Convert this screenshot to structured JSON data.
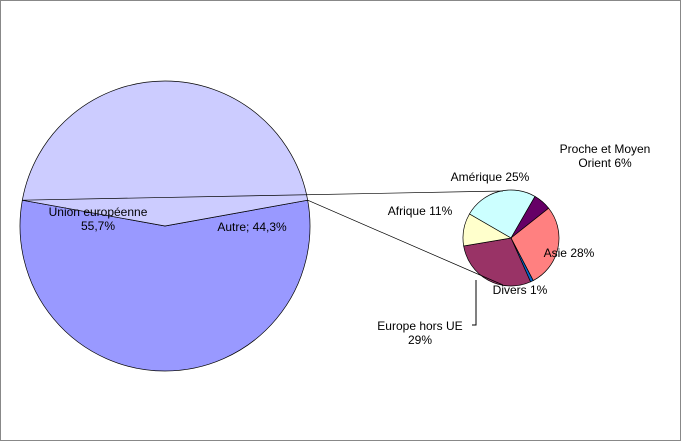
{
  "chart_data": [
    {
      "type": "pie",
      "values": [
        55.7,
        44.3
      ],
      "colors": [
        "#9999ff",
        "#ccccff"
      ],
      "labels": [
        [
          "Union européenne",
          "55,7%"
        ],
        [
          "Autre; 44,3%"
        ]
      ]
    },
    {
      "type": "pie",
      "values": [
        25,
        6,
        28,
        1,
        29,
        11
      ],
      "colors": [
        "#ccffff",
        "#660066",
        "#ff8080",
        "#0066cc",
        "#993366",
        "#ffffcc"
      ],
      "labels": [
        [
          "Amérique 25%"
        ],
        [
          "Proche et Moyen",
          "Orient 6%"
        ],
        [
          "Asie 28%"
        ],
        [
          "Divers 1%"
        ],
        [
          "Europe hors UE",
          "29%"
        ],
        [
          "Afrique 11%"
        ]
      ]
    }
  ]
}
